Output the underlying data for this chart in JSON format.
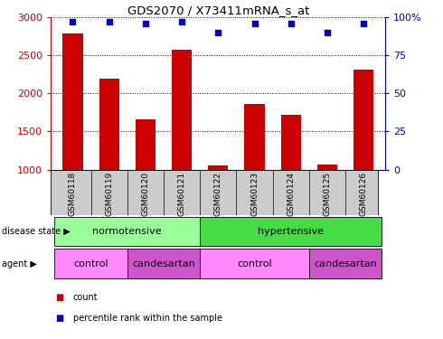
{
  "title": "GDS2070 / X73411mRNA_s_at",
  "samples": [
    "GSM60118",
    "GSM60119",
    "GSM60120",
    "GSM60121",
    "GSM60122",
    "GSM60123",
    "GSM60124",
    "GSM60125",
    "GSM60126"
  ],
  "counts": [
    2780,
    2190,
    1660,
    2570,
    1050,
    1860,
    1720,
    1070,
    2310
  ],
  "percentile_ranks": [
    97,
    97,
    96,
    97,
    90,
    96,
    96,
    90,
    96
  ],
  "ylim_left": [
    1000,
    3000
  ],
  "ylim_right": [
    0,
    100
  ],
  "yticks_left": [
    1000,
    1500,
    2000,
    2500,
    3000
  ],
  "yticks_right": [
    0,
    25,
    50,
    75,
    100
  ],
  "bar_color": "#cc0000",
  "scatter_color": "#0000cc",
  "disease_color_normotensive": "#99ff99",
  "disease_color_hypertensive": "#44dd44",
  "agent_color_control": "#ff88ff",
  "agent_color_candesartan": "#cc55cc",
  "xtick_bg_color": "#cccccc"
}
